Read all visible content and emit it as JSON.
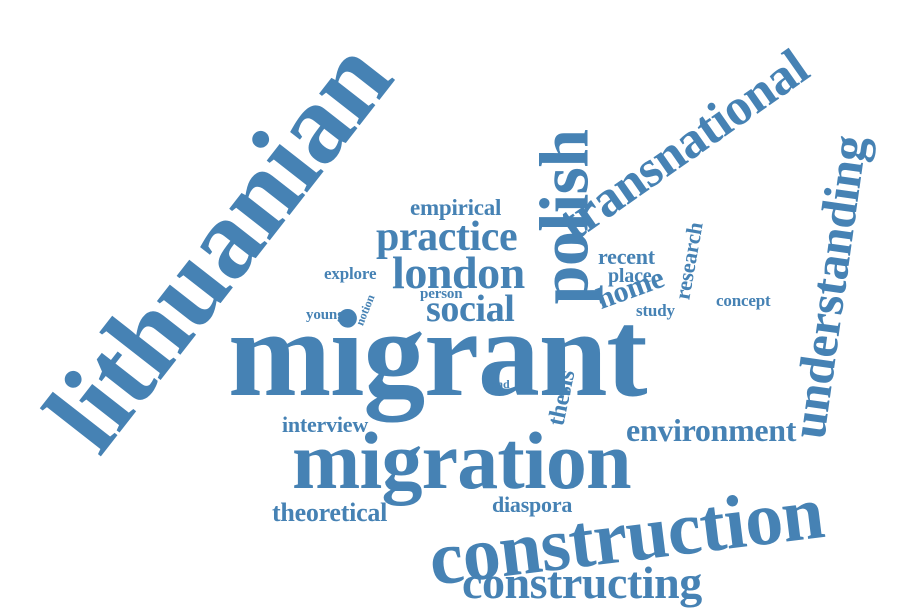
{
  "theme": {
    "text_color": "#4682b4",
    "background": "#ffffff"
  },
  "words": {
    "lithuanian": "lithuanian",
    "migrant": "migrant",
    "migration": "migration",
    "construction": "construction",
    "constructing": "constructing",
    "polish": "polish",
    "transnational": "transnational",
    "understanding": "understanding",
    "london": "london",
    "practice": "practice",
    "social": "social",
    "empirical": "empirical",
    "environment": "environment",
    "theoretical": "theoretical",
    "interview": "interview",
    "diaspora": "diaspora",
    "thesis": "thesis",
    "research": "research",
    "home": "home",
    "recent": "recent",
    "place": "place",
    "study": "study",
    "concept": "concept",
    "explore": "explore",
    "person": "person",
    "young": "young",
    "notion": "notion",
    "hand": "hand"
  }
}
